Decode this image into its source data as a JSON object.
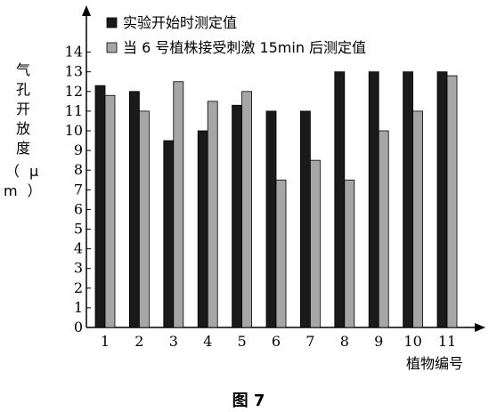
{
  "figure": {
    "caption": "图 7"
  },
  "chart_data": {
    "type": "bar",
    "categories": [
      "1",
      "2",
      "3",
      "4",
      "5",
      "6",
      "7",
      "8",
      "9",
      "10",
      "11"
    ],
    "series": [
      {
        "name": "实验开始时测定值",
        "color": "#1a1a1a",
        "values": [
          12.3,
          12.0,
          9.5,
          10.0,
          11.3,
          11.0,
          11.0,
          13.0,
          13.0,
          13.0,
          13.0
        ]
      },
      {
        "name": "当 6 号植株接受刺激 15min 后测定值",
        "color": "#a6a6a6",
        "values": [
          11.8,
          11.0,
          12.5,
          11.5,
          12.0,
          7.5,
          8.5,
          7.5,
          10.0,
          11.0,
          12.8
        ]
      }
    ],
    "title": "",
    "xlabel": "植物编号",
    "ylabel_chars": [
      "气",
      "孔",
      "开",
      "放",
      "度"
    ],
    "ylabel_unit": "（ μ m ）",
    "ylim": [
      0,
      14
    ],
    "yticks": [
      "0",
      "1",
      "2",
      "3",
      "4",
      "5",
      "6",
      "7",
      "8",
      "9",
      "10",
      "11",
      "12",
      "13",
      "14"
    ],
    "grid": false,
    "legend_position": "top-left"
  }
}
